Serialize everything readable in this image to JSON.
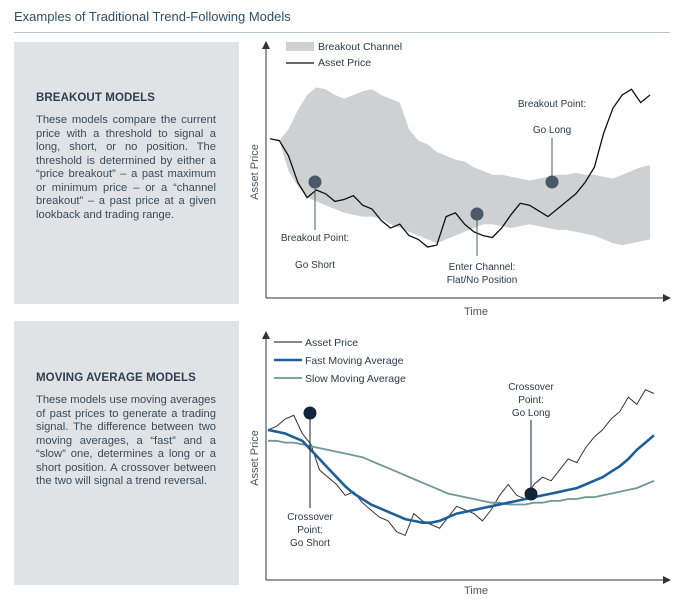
{
  "page_title": "Examples of Traditional Trend-Following Models",
  "panels": [
    {
      "title": "BREAKOUT MODELS",
      "text": "These models compare the current price with a threshold to signal a long, short, or no position. The threshold is determined by either a “price breakout” – a past maximum or minimum price – or a “channel breakout” – a past price at a given lookback and trading range."
    },
    {
      "title": "MOVING AVERAGE MODELS",
      "text": "These models use moving averages of past prices to generate a trading signal. The difference between two moving averages, a “fast” and a “slow” one, determines a long or a short position. A crossover between the two will signal a trend reversal."
    }
  ],
  "colors": {
    "panel_bg": "#dfe3e6",
    "channel": "#cfd0d1",
    "price": "#111111",
    "fast_ma": "#1f5f99",
    "slow_ma": "#6d9a8e",
    "marker": "#4a5968",
    "marker_dark": "#13253a"
  },
  "chart_data": [
    {
      "type": "line",
      "title": "",
      "xlabel": "Time",
      "ylabel": "Asset Price",
      "x_ticks": [],
      "y_ticks": [],
      "legend": [
        "Breakout Channel",
        "Asset Price"
      ],
      "legend_position": "top-left",
      "grid": false,
      "series": [
        {
          "name": "Asset Price",
          "values": [
            67,
            66,
            58,
            44,
            36,
            40,
            38,
            34,
            35,
            37,
            32,
            30,
            24,
            20,
            22,
            16,
            14,
            10,
            11,
            26,
            28,
            22,
            18,
            16,
            15,
            20,
            27,
            33,
            32,
            29,
            26,
            30,
            34,
            38,
            44,
            52,
            70,
            83,
            90,
            93,
            86,
            90
          ]
        },
        {
          "name": "Breakout Channel (upper)",
          "values": [
            67,
            66,
            72,
            82,
            90,
            94,
            93,
            90,
            88,
            90,
            92,
            93,
            90,
            88,
            86,
            72,
            66,
            64,
            60,
            58,
            56,
            55,
            52,
            50,
            48,
            48,
            47,
            46,
            45,
            46,
            47,
            48,
            48,
            49,
            48,
            48,
            47,
            46,
            48,
            50,
            52,
            53
          ]
        },
        {
          "name": "Breakout Channel (lower)",
          "values": [
            67,
            66,
            50,
            42,
            36,
            34,
            32,
            30,
            28,
            27,
            26,
            26,
            25,
            22,
            20,
            18,
            16,
            14,
            12,
            14,
            16,
            18,
            20,
            22,
            22,
            21,
            20,
            21,
            22,
            21,
            20,
            19,
            19,
            18,
            17,
            16,
            14,
            12,
            11,
            12,
            13,
            14
          ]
        }
      ],
      "annotations": [
        {
          "label": "Breakout Point:",
          "label2": "Go Short",
          "x": 6,
          "y": 36
        },
        {
          "label": "Enter Channel:",
          "label2": "Flat/No Position",
          "x": 27,
          "y": 26
        },
        {
          "label": "Breakout Point:",
          "label2": "Go Long",
          "x": 37,
          "y": 36
        }
      ]
    },
    {
      "type": "line",
      "title": "",
      "xlabel": "Time",
      "ylabel": "Asset Price",
      "x_ticks": [],
      "y_ticks": [],
      "legend": [
        "Asset Price",
        "Fast Moving Average",
        "Slow Moving Average"
      ],
      "legend_position": "top-left",
      "grid": false,
      "series": [
        {
          "name": "Asset Price",
          "values": [
            66,
            68,
            72,
            74,
            64,
            58,
            44,
            40,
            36,
            30,
            32,
            26,
            22,
            18,
            16,
            10,
            8,
            20,
            16,
            14,
            12,
            18,
            24,
            22,
            20,
            16,
            22,
            30,
            36,
            30,
            28,
            36,
            40,
            38,
            44,
            50,
            48,
            56,
            62,
            66,
            72,
            76,
            84,
            80,
            88,
            86
          ]
        },
        {
          "name": "Fast Moving Average",
          "values": [
            66,
            65,
            64,
            62,
            60,
            55,
            50,
            45,
            40,
            35,
            31,
            28,
            25,
            23,
            21,
            19,
            17,
            16,
            15,
            15,
            16,
            18,
            20,
            21,
            22,
            23,
            24,
            25,
            26,
            27,
            28,
            29,
            30,
            31,
            32,
            33,
            34,
            36,
            38,
            40,
            43,
            46,
            50,
            55,
            59,
            63
          ]
        },
        {
          "name": "Slow Moving Average",
          "values": [
            60,
            60,
            59,
            59,
            58,
            57,
            56,
            55,
            54,
            53,
            52,
            51,
            49,
            47,
            45,
            43,
            41,
            39,
            37,
            35,
            33,
            31,
            30,
            29,
            28,
            27,
            26,
            26,
            25,
            25,
            25,
            26,
            26,
            27,
            27,
            28,
            28,
            29,
            29,
            30,
            31,
            32,
            33,
            34,
            36,
            38
          ]
        }
      ],
      "annotations": [
        {
          "label": "Crossover",
          "label2": "Point:",
          "label3": "Go Short",
          "x": 6,
          "y": 59
        },
        {
          "label": "Crossover",
          "label2": "Point:",
          "label3": "Go Long",
          "x": 35,
          "y": 28
        }
      ]
    }
  ]
}
